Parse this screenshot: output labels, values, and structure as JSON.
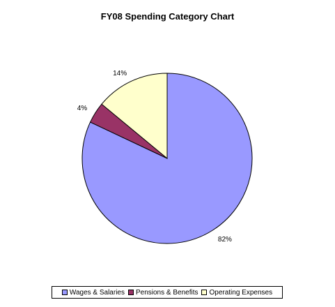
{
  "chart_data": {
    "type": "pie",
    "title": "FY08 Spending Category Chart",
    "slices": [
      {
        "name": "Wages & Salaries",
        "value": 82,
        "label": "82%",
        "color": "#9999ff"
      },
      {
        "name": "Pensions & Benefits",
        "value": 4,
        "label": "4%",
        "color": "#993366"
      },
      {
        "name": "Operating Expenses",
        "value": 14,
        "label": "14%",
        "color": "#ffffcc"
      }
    ],
    "legend_position": "bottom"
  },
  "legend": {
    "items": [
      "Wages & Salaries",
      "Pensions & Benefits",
      "Operating Expenses"
    ]
  }
}
